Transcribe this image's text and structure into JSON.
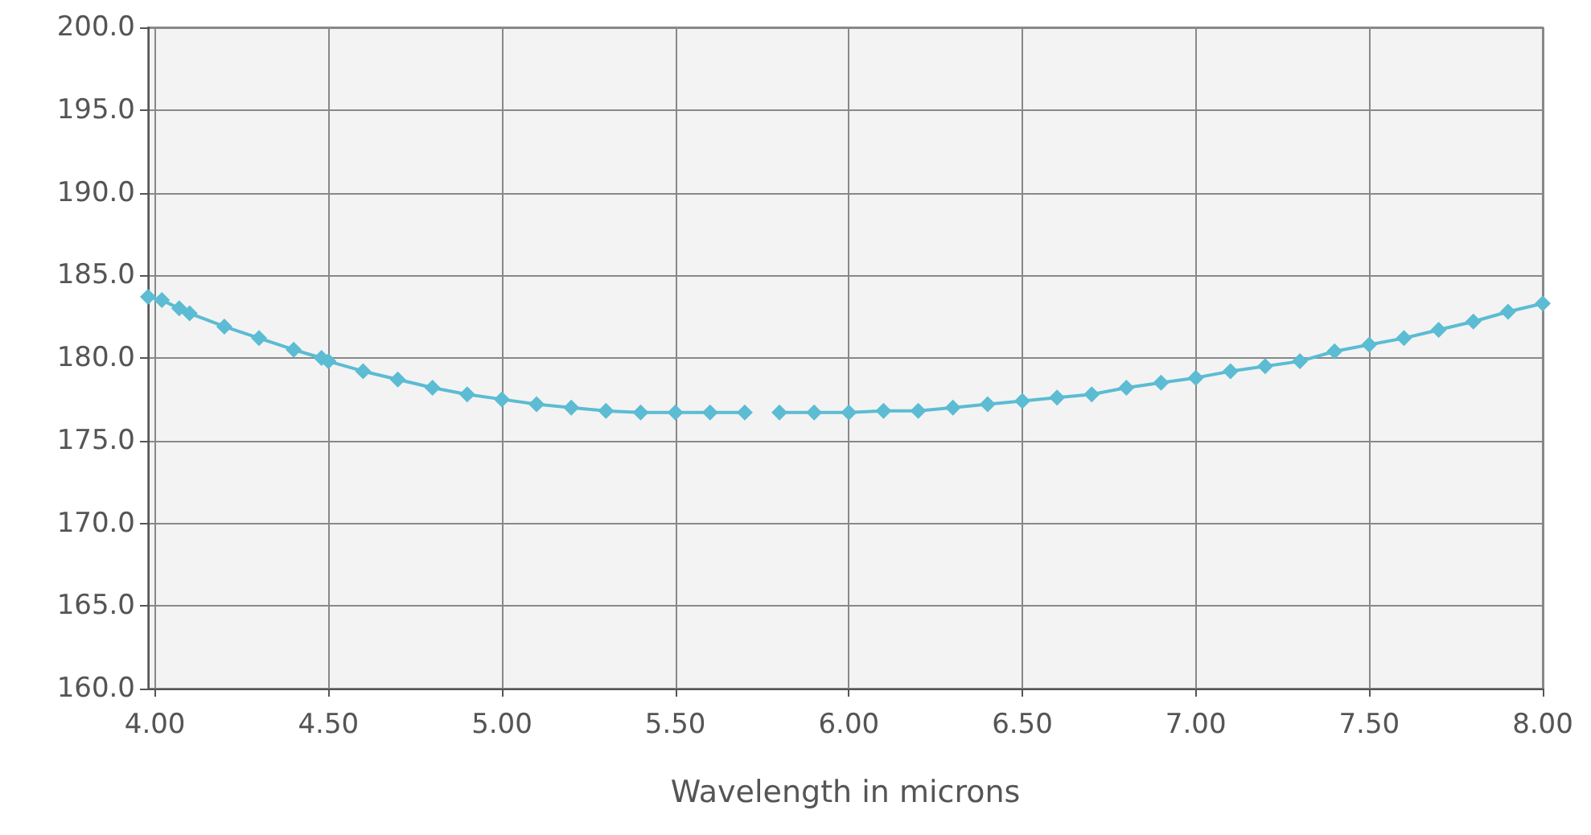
{
  "chart_data": {
    "type": "line",
    "xlabel": "Wavelength in microns",
    "x": [
      3.98,
      4.02,
      4.07,
      4.1,
      4.2,
      4.3,
      4.4,
      4.48,
      4.5,
      4.6,
      4.7,
      4.8,
      4.9,
      5.0,
      5.1,
      5.2,
      5.3,
      5.4,
      5.5,
      5.6,
      5.7,
      5.75,
      5.8,
      5.9,
      6.0,
      6.1,
      6.2,
      6.3,
      6.4,
      6.5,
      6.6,
      6.7,
      6.8,
      6.9,
      7.0,
      7.1,
      7.2,
      7.3,
      7.4,
      7.5,
      7.6,
      7.7,
      7.8,
      7.9,
      8.0
    ],
    "series": [
      {
        "color": "#5bbcd3",
        "values": [
          183.7,
          183.5,
          183.0,
          182.7,
          181.9,
          181.2,
          180.5,
          180.0,
          179.8,
          179.2,
          178.7,
          178.2,
          177.8,
          177.5,
          177.2,
          177.0,
          176.8,
          176.7,
          176.7,
          176.7,
          176.7,
          null,
          176.7,
          176.7,
          176.7,
          176.8,
          176.8,
          177.0,
          177.2,
          177.4,
          177.6,
          177.8,
          178.2,
          178.5,
          178.8,
          179.2,
          179.5,
          179.8,
          180.4,
          180.8,
          181.2,
          181.7,
          182.2,
          182.8,
          183.3
        ]
      }
    ],
    "xlim": [
      3.98,
      8.0
    ],
    "xticks": [
      {
        "value": 4,
        "label": "4.00"
      },
      {
        "value": 4.5,
        "label": "4.50"
      },
      {
        "value": 5,
        "label": "5.00"
      },
      {
        "value": 5.5,
        "label": "5.50"
      },
      {
        "value": 6,
        "label": "6.00"
      },
      {
        "value": 6.5,
        "label": "6.50"
      },
      {
        "value": 7,
        "label": "7.00"
      },
      {
        "value": 7.5,
        "label": "7.50"
      },
      {
        "value": 8,
        "label": "8.00"
      }
    ],
    "ylim": [
      160,
      200
    ],
    "yticks": [
      {
        "value": 160,
        "label": "160.0"
      },
      {
        "value": 165,
        "label": "165.0"
      },
      {
        "value": 170,
        "label": "170.0"
      },
      {
        "value": 175,
        "label": "175.0"
      },
      {
        "value": 180,
        "label": "180.0"
      },
      {
        "value": 185,
        "label": "185.0"
      },
      {
        "value": 190,
        "label": "190.0"
      },
      {
        "value": 195,
        "label": "195.0"
      },
      {
        "value": 200,
        "label": "200.0"
      }
    ],
    "grid": true,
    "marker": "diamond"
  }
}
